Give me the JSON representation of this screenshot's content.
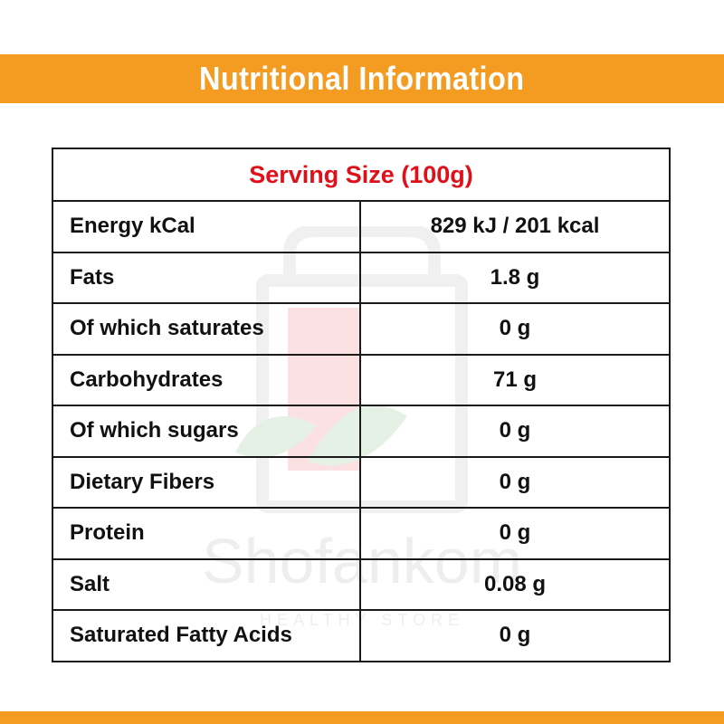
{
  "header": {
    "title": "Nutritional Information"
  },
  "watermark": {
    "brand": "Shofankom",
    "tagline": "HEALTHY STORE"
  },
  "table": {
    "serving_size": "Serving Size (100g)",
    "rows": [
      {
        "label": "Energy kCal",
        "value": "829 kJ / 201 kcal"
      },
      {
        "label": "Fats",
        "value": "1.8 g"
      },
      {
        "label": "Of which saturates",
        "value": "0 g"
      },
      {
        "label": "Carbohydrates",
        "value": "71 g"
      },
      {
        "label": "Of which sugars",
        "value": "0 g"
      },
      {
        "label": "Dietary Fibers",
        "value": "0 g"
      },
      {
        "label": "Protein",
        "value": "0 g"
      },
      {
        "label": "Salt",
        "value": "0.08 g"
      },
      {
        "label": "Saturated Fatty Acids",
        "value": "0 g"
      }
    ]
  },
  "colors": {
    "accent": "#f49b22",
    "serving_size_text": "#e0101a",
    "border": "#1a1a1a"
  }
}
